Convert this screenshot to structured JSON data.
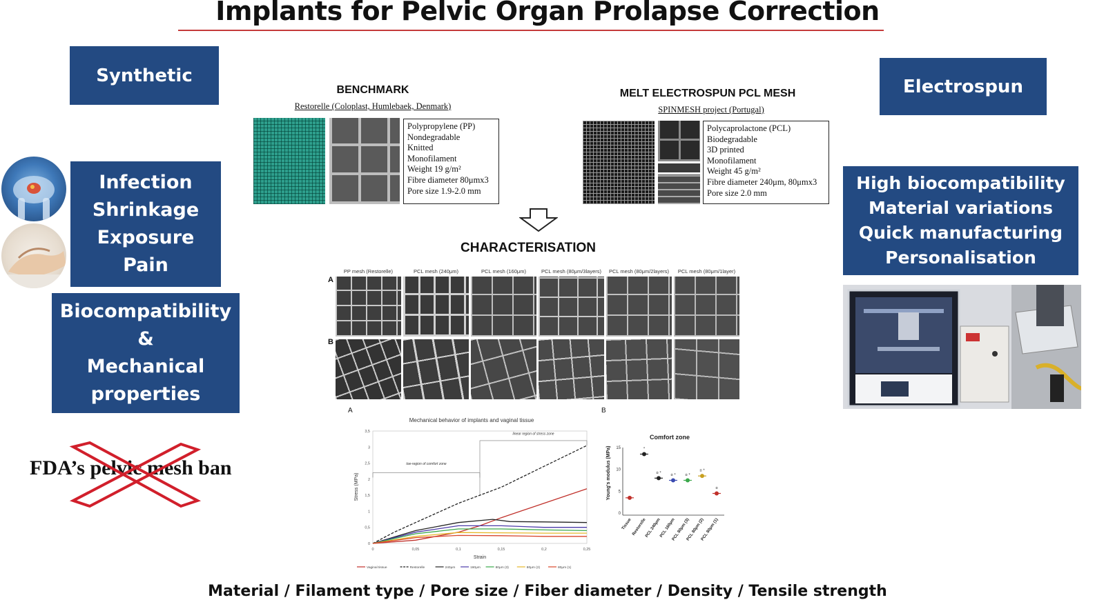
{
  "title": "Implants for Pelvic Organ Prolapse Correction",
  "colors": {
    "box_bg": "#234a82",
    "title_rule": "#c43a3a",
    "cross": "#d11f2b"
  },
  "left": {
    "synthetic": "Synthetic",
    "issues": [
      "Infection",
      "Shrinkage",
      "Exposure",
      "Pain"
    ],
    "biocompat": [
      "Biocompatibility",
      "&",
      "Mechanical",
      "properties"
    ],
    "fda": "FDA’s pelvic mesh ban"
  },
  "right": {
    "electrospun": "Electrospun",
    "advantages": [
      "High biocompatibility",
      "Material variations",
      "Quick manufacturing",
      "Personalisation"
    ]
  },
  "benchmark": {
    "heading": "BENCHMARK",
    "source": "Restorelle (Coloplast, Humlebaek, Denmark)",
    "specs": [
      "Polypropylene (PP)",
      "Nondegradable",
      "Knitted",
      "Monofilament",
      "Weight 19 g/m²",
      "Fibre diameter 80μmx3",
      "Pore size 1.9-2.0 mm"
    ]
  },
  "pcl": {
    "heading": "MELT ELECTROSPUN PCL MESH",
    "source": "SPINMESH project (Portugal)",
    "specs": [
      "Polycaprolactone (PCL)",
      "Biodegradable",
      "3D printed",
      "Monofilament",
      "Weight 45 g/m²",
      "Fibre diameter 240μm, 80μmx3",
      "Pore size 2.0 mm"
    ]
  },
  "characterisation": {
    "heading": "CHARACTERISATION",
    "columns": [
      "PP mesh (Restorelle)",
      "PCL mesh (240μm)",
      "PCL mesh (160μm)",
      "PCL mesh (80μm/3layers)",
      "PCL mesh (80μm/2layers)",
      "PCL mesh (80μm/1layer)"
    ],
    "row_labels": [
      "A",
      "B"
    ],
    "panel_labels": [
      "A",
      "B"
    ]
  },
  "chart_data": [
    {
      "type": "line",
      "title": "Mechanical behavior of implants and vaginal tissue",
      "xlabel": "Strain",
      "ylabel": "Stress (MPa)",
      "xlim": [
        0,
        0.25
      ],
      "ylim": [
        0,
        3.5
      ],
      "xticks": [
        "0",
        "0,05",
        "0,1",
        "0,15",
        "0,2",
        "0,25"
      ],
      "yticks": [
        "0",
        "0,5",
        "1",
        "1,5",
        "2",
        "2,5",
        "3",
        "3,5"
      ],
      "annotations": [
        "toe-region of comfort zone",
        "linear region of stress zone"
      ],
      "annotation_ranges": {
        "toe": [
          0,
          0.125
        ],
        "linear": [
          0.125,
          0.25
        ]
      },
      "series": [
        {
          "name": "Vaginal tissue",
          "color": "#c0302a",
          "dash": false,
          "x": [
            0,
            0.05,
            0.1,
            0.125,
            0.15,
            0.2,
            0.25
          ],
          "y": [
            0,
            0.1,
            0.35,
            0.55,
            0.8,
            1.25,
            1.7
          ]
        },
        {
          "name": "Restorelle",
          "color": "#222222",
          "dash": true,
          "x": [
            0,
            0.025,
            0.05,
            0.1,
            0.125,
            0.15,
            0.2,
            0.25
          ],
          "y": [
            0,
            0.35,
            0.65,
            1.25,
            1.5,
            1.75,
            2.4,
            3.05
          ]
        },
        {
          "name": "240μm",
          "color": "#222222",
          "dash": false,
          "x": [
            0,
            0.05,
            0.1,
            0.14,
            0.16,
            0.2,
            0.25
          ],
          "y": [
            0,
            0.4,
            0.65,
            0.75,
            0.68,
            0.67,
            0.65
          ]
        },
        {
          "name": "160μm",
          "color": "#4a3aa8",
          "dash": false,
          "x": [
            0,
            0.05,
            0.1,
            0.15,
            0.2,
            0.25
          ],
          "y": [
            0,
            0.35,
            0.55,
            0.55,
            0.5,
            0.5
          ]
        },
        {
          "name": "80μm (3)",
          "color": "#3aa84a",
          "dash": false,
          "x": [
            0,
            0.05,
            0.1,
            0.15,
            0.2,
            0.25
          ],
          "y": [
            0,
            0.3,
            0.45,
            0.45,
            0.42,
            0.4
          ]
        },
        {
          "name": "80μm (2)",
          "color": "#e6b82a",
          "dash": false,
          "x": [
            0,
            0.05,
            0.1,
            0.15,
            0.2,
            0.25
          ],
          "y": [
            0,
            0.22,
            0.34,
            0.33,
            0.32,
            0.32
          ]
        },
        {
          "name": "80μm (1)",
          "color": "#d9452a",
          "dash": false,
          "x": [
            0,
            0.05,
            0.1,
            0.15,
            0.2,
            0.25
          ],
          "y": [
            0,
            0.18,
            0.25,
            0.24,
            0.22,
            0.22
          ]
        }
      ]
    },
    {
      "type": "scatter",
      "title": "Comfort zone",
      "ylabel": "Young's modulus (MPa)",
      "ylim": [
        0,
        15
      ],
      "yticks": [
        "0",
        "5",
        "10",
        "15"
      ],
      "categories": [
        "Tissue",
        "Restorelle",
        "PCL 240μm",
        "PCL 160μm",
        "PCL 80μm (3)",
        "PCL 80μm (2)",
        "PCL 80μm (1)"
      ],
      "values": [
        3.5,
        13.5,
        8,
        7.5,
        7.5,
        8.5,
        4.5
      ],
      "colors": [
        "#c0302a",
        "#222222",
        "#222222",
        "#3a4ab0",
        "#3aa84a",
        "#c8a020",
        "#c0302a"
      ],
      "markers": [
        "",
        "*",
        "¤ *",
        "¤ *",
        "¤ *",
        "¤ *",
        "¤"
      ]
    }
  ],
  "bottom": "Material / Filament type / Pore size / Fiber diameter / Density / Tensile strength"
}
